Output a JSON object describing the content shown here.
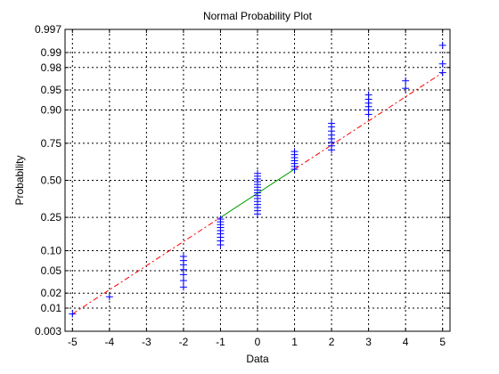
{
  "chart_data": {
    "type": "scatter",
    "title": "Normal Probability Plot",
    "xlabel": "Data",
    "ylabel": "Probability",
    "xlim": [
      -5.2,
      5.2
    ],
    "ylim": [
      0.003,
      0.997
    ],
    "y_scale": "normal-probability",
    "grid": true,
    "x_ticks": [
      -5,
      -4,
      -3,
      -2,
      -1,
      0,
      1,
      2,
      3,
      4,
      5
    ],
    "x_tick_labels": [
      "-5",
      "-4",
      "-3",
      "-2",
      "-1",
      "0",
      "1",
      "2",
      "3",
      "4",
      "5"
    ],
    "y_ticks": [
      0.003,
      0.01,
      0.02,
      0.05,
      0.1,
      0.25,
      0.5,
      0.75,
      0.9,
      0.95,
      0.98,
      0.99,
      0.997
    ],
    "y_tick_labels": [
      "0.003",
      "0.01",
      "0.02",
      "0.05",
      "0.10",
      "0.25",
      "0.50",
      "0.75",
      "0.90",
      "0.95",
      "0.98",
      "0.99",
      "0.997"
    ],
    "points": [
      {
        "x": -5,
        "p": [
          0.0075
        ]
      },
      {
        "x": -4,
        "p": [
          0.017
        ]
      },
      {
        "x": -2,
        "p": [
          0.026,
          0.034,
          0.043,
          0.052,
          0.062,
          0.072,
          0.083
        ]
      },
      {
        "x": -1,
        "p": [
          0.12,
          0.135,
          0.15,
          0.165,
          0.18,
          0.195,
          0.21,
          0.225,
          0.24
        ]
      },
      {
        "x": 0,
        "p": [
          0.27,
          0.29,
          0.31,
          0.33,
          0.35,
          0.37,
          0.39,
          0.41,
          0.43,
          0.45,
          0.47,
          0.49,
          0.51,
          0.53,
          0.55
        ]
      },
      {
        "x": 1,
        "p": [
          0.58,
          0.6,
          0.62,
          0.64,
          0.66,
          0.68,
          0.7
        ]
      },
      {
        "x": 2,
        "p": [
          0.71,
          0.735,
          0.755,
          0.775,
          0.795,
          0.815,
          0.835,
          0.85
        ]
      },
      {
        "x": 3,
        "p": [
          0.885,
          0.9,
          0.91,
          0.92,
          0.93,
          0.94
        ]
      },
      {
        "x": 4,
        "p": [
          0.953,
          0.965
        ]
      },
      {
        "x": 5,
        "p": [
          0.975,
          0.983,
          0.993
        ]
      }
    ],
    "fit_line": {
      "x": [
        -5,
        5
      ],
      "p": [
        0.0075,
        0.975
      ],
      "solid_x_range": [
        -1,
        1
      ]
    }
  }
}
